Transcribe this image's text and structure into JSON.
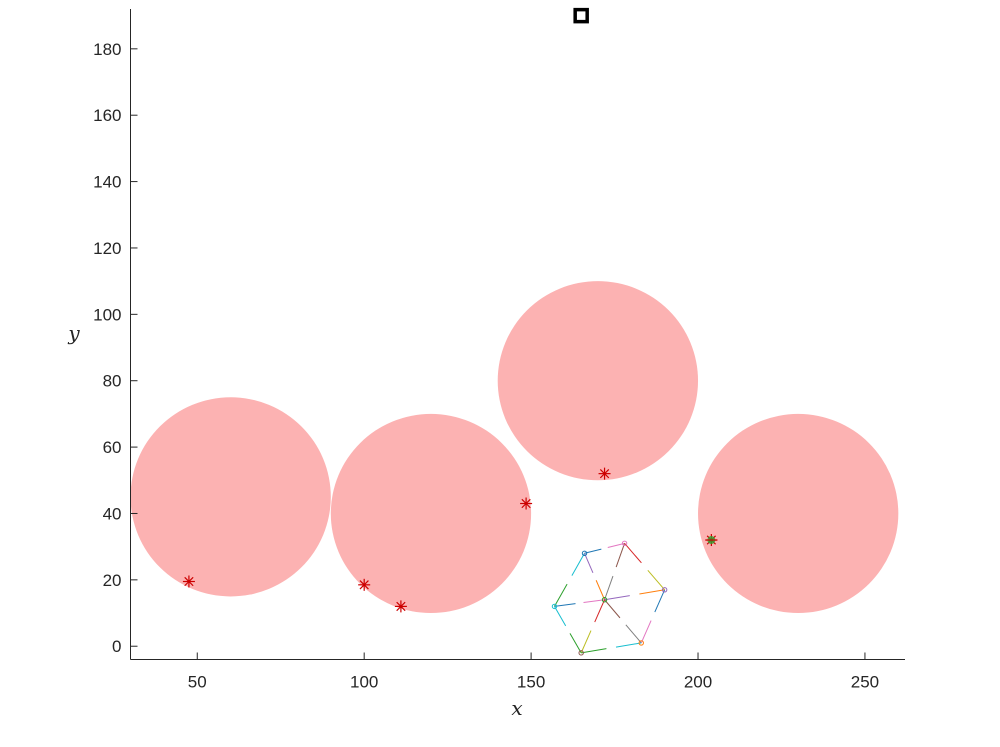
{
  "chart_data": {
    "type": "scatter",
    "title": "",
    "xlabel": "x",
    "ylabel": "y",
    "xlim": [
      30,
      262
    ],
    "ylim": [
      -4,
      192
    ],
    "x_ticks": [
      "50",
      "100",
      "150",
      "200",
      "250"
    ],
    "y_ticks": [
      "0",
      "20",
      "40",
      "60",
      "80",
      "100",
      "120",
      "140",
      "160",
      "180"
    ],
    "grid": false,
    "box": false,
    "colors": {
      "obstacle": "#fcb2b2",
      "star": "#cc0000",
      "goal": "#000000",
      "green": "#2ea02e",
      "swarm": [
        "#1f77b4",
        "#e377c2",
        "#17becf",
        "#2ca02c",
        "#9467bd",
        "#ff7f0e",
        "#8c564b",
        "#7f7f7f",
        "#d62728",
        "#bcbd22"
      ]
    },
    "obstacles": [
      {
        "cx": 60,
        "cy": 45,
        "r": 30
      },
      {
        "cx": 120,
        "cy": 40,
        "r": 30
      },
      {
        "cx": 170,
        "cy": 80,
        "r": 30
      },
      {
        "cx": 230,
        "cy": 40,
        "r": 30
      }
    ],
    "stars": [
      {
        "x": 47.5,
        "y": 19.5
      },
      {
        "x": 100,
        "y": 18.5
      },
      {
        "x": 111,
        "y": 12
      },
      {
        "x": 148.5,
        "y": 43
      },
      {
        "x": 172,
        "y": 52
      },
      {
        "x": 204,
        "y": 32,
        "green": true
      }
    ],
    "goal": {
      "x": 165,
      "y": 190
    },
    "swarm_nodes": [
      {
        "x": 166,
        "y": 28
      },
      {
        "x": 178,
        "y": 31
      },
      {
        "x": 157,
        "y": 12
      },
      {
        "x": 172,
        "y": 14
      },
      {
        "x": 190,
        "y": 17
      },
      {
        "x": 183,
        "y": 1
      },
      {
        "x": 165,
        "y": -2
      }
    ]
  }
}
